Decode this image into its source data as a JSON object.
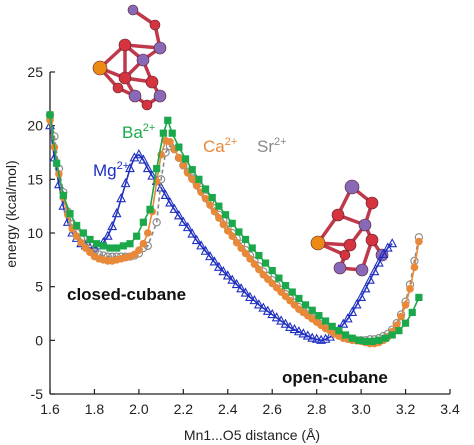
{
  "chart_data": {
    "type": "line",
    "title": "",
    "xlabel": "Mn1...O5 distance (Å)",
    "ylabel": "energy (kcal/mol)",
    "xlim": [
      1.6,
      3.4
    ],
    "ylim": [
      -5,
      25
    ],
    "x_ticks": [
      "1.6",
      "1.8",
      "2.0",
      "2.2",
      "2.4",
      "2.6",
      "2.8",
      "3.0",
      "3.2",
      "3.4"
    ],
    "y_ticks": [
      "-5",
      "0",
      "5",
      "10",
      "15",
      "20",
      "25"
    ],
    "grid": false,
    "legend": [
      {
        "ion": "Ba",
        "charge": "2+",
        "color": "#1aa84a"
      },
      {
        "ion": "Ca",
        "charge": "2+",
        "color": "#e8893a"
      },
      {
        "ion": "Sr",
        "charge": "2+",
        "color": "#888888"
      },
      {
        "ion": "Mg",
        "charge": "2+",
        "color": "#1f2fc0"
      }
    ],
    "annotations": [
      "closed-cubane",
      "open-cubane"
    ],
    "series": [
      {
        "name": "Mg2+",
        "color": "#1f2fc0",
        "marker": "triangle-open",
        "points": [
          [
            1.6,
            20
          ],
          [
            1.62,
            17
          ],
          [
            1.64,
            14.5
          ],
          [
            1.66,
            12.5
          ],
          [
            1.68,
            11
          ],
          [
            1.7,
            10
          ],
          [
            1.72,
            9.5
          ],
          [
            1.74,
            9
          ],
          [
            1.76,
            8.8
          ],
          [
            1.78,
            8.6
          ],
          [
            1.8,
            8.6
          ],
          [
            1.82,
            8.8
          ],
          [
            1.84,
            9.1
          ],
          [
            1.86,
            9.7
          ],
          [
            1.88,
            10.6
          ],
          [
            1.9,
            11.8
          ],
          [
            1.92,
            13.2
          ],
          [
            1.94,
            14.6
          ],
          [
            1.96,
            16
          ],
          [
            1.98,
            17
          ],
          [
            2.0,
            17.3
          ],
          [
            2.02,
            16.8
          ],
          [
            2.04,
            16
          ],
          [
            2.06,
            15.3
          ],
          [
            2.08,
            14.8
          ],
          [
            2.1,
            14.2
          ],
          [
            2.12,
            13.5
          ],
          [
            2.14,
            12.8
          ],
          [
            2.16,
            12.2
          ],
          [
            2.18,
            11.6
          ],
          [
            2.2,
            11
          ],
          [
            2.22,
            10.5
          ],
          [
            2.24,
            9.9
          ],
          [
            2.26,
            9.3
          ],
          [
            2.28,
            8.8
          ],
          [
            2.3,
            8.3
          ],
          [
            2.32,
            7.8
          ],
          [
            2.34,
            7.3
          ],
          [
            2.36,
            6.8
          ],
          [
            2.38,
            6.4
          ],
          [
            2.4,
            6
          ],
          [
            2.42,
            5.6
          ],
          [
            2.44,
            5.2
          ],
          [
            2.46,
            4.8
          ],
          [
            2.48,
            4.4
          ],
          [
            2.5,
            4
          ],
          [
            2.52,
            3.7
          ],
          [
            2.54,
            3.3
          ],
          [
            2.56,
            3
          ],
          [
            2.58,
            2.7
          ],
          [
            2.6,
            2.4
          ],
          [
            2.62,
            2.1
          ],
          [
            2.64,
            1.8
          ],
          [
            2.66,
            1.5
          ],
          [
            2.68,
            1.2
          ],
          [
            2.7,
            1
          ],
          [
            2.72,
            0.8
          ],
          [
            2.74,
            0.6
          ],
          [
            2.76,
            0.4
          ],
          [
            2.78,
            0.2
          ],
          [
            2.8,
            0.1
          ],
          [
            2.82,
            0
          ],
          [
            2.84,
            0.1
          ],
          [
            2.86,
            0.3
          ],
          [
            2.88,
            0.6
          ],
          [
            2.9,
            1
          ],
          [
            2.92,
            1.5
          ],
          [
            2.94,
            2
          ],
          [
            2.96,
            2.6
          ],
          [
            2.98,
            3.3
          ],
          [
            3.0,
            4
          ],
          [
            3.02,
            4.8
          ],
          [
            3.04,
            5.6
          ],
          [
            3.06,
            6.4
          ],
          [
            3.08,
            7.2
          ],
          [
            3.1,
            8
          ],
          [
            3.12,
            8.6
          ],
          [
            3.14,
            9
          ]
        ]
      },
      {
        "name": "Sr2+",
        "color": "#888888",
        "marker": "circle-open",
        "points": [
          [
            1.6,
            21
          ],
          [
            1.62,
            19
          ],
          [
            1.64,
            16
          ],
          [
            1.66,
            13.8
          ],
          [
            1.68,
            12
          ],
          [
            1.7,
            10.8
          ],
          [
            1.72,
            10
          ],
          [
            1.74,
            9.4
          ],
          [
            1.76,
            9
          ],
          [
            1.78,
            8.5
          ],
          [
            1.8,
            8.2
          ],
          [
            1.82,
            8
          ],
          [
            1.84,
            7.9
          ],
          [
            1.86,
            7.8
          ],
          [
            1.88,
            7.8
          ],
          [
            1.9,
            7.8
          ],
          [
            1.92,
            7.8
          ],
          [
            1.94,
            7.8
          ],
          [
            1.96,
            7.8
          ],
          [
            1.98,
            7.9
          ],
          [
            2.0,
            8.1
          ],
          [
            2.02,
            8.6
          ],
          [
            2.04,
            8.8
          ],
          [
            2.08,
            11
          ],
          [
            2.1,
            15
          ],
          [
            2.12,
            17.5
          ],
          [
            2.14,
            18.1
          ],
          [
            2.16,
            17.8
          ],
          [
            2.18,
            17
          ],
          [
            2.2,
            16.3
          ],
          [
            2.22,
            15.7
          ],
          [
            2.24,
            15.1
          ],
          [
            2.26,
            14.6
          ],
          [
            2.28,
            14
          ],
          [
            2.3,
            13.4
          ],
          [
            2.32,
            12.9
          ],
          [
            2.34,
            12.3
          ],
          [
            2.36,
            11.7
          ],
          [
            2.38,
            11.2
          ],
          [
            2.4,
            10.6
          ],
          [
            2.42,
            10
          ],
          [
            2.44,
            9.5
          ],
          [
            2.46,
            9
          ],
          [
            2.48,
            8.4
          ],
          [
            2.5,
            7.9
          ],
          [
            2.52,
            7.4
          ],
          [
            2.54,
            6.9
          ],
          [
            2.56,
            6.4
          ],
          [
            2.58,
            6
          ],
          [
            2.6,
            5.6
          ],
          [
            2.62,
            5.1
          ],
          [
            2.64,
            4.7
          ],
          [
            2.66,
            4.3
          ],
          [
            2.68,
            3.9
          ],
          [
            2.7,
            3.5
          ],
          [
            2.72,
            3.1
          ],
          [
            2.74,
            2.7
          ],
          [
            2.76,
            2.4
          ],
          [
            2.78,
            2.1
          ],
          [
            2.8,
            1.8
          ],
          [
            2.82,
            1.5
          ],
          [
            2.84,
            1.2
          ],
          [
            2.86,
            1
          ],
          [
            2.88,
            0.7
          ],
          [
            2.9,
            0.5
          ],
          [
            2.92,
            0.3
          ],
          [
            2.94,
            0.2
          ],
          [
            2.96,
            0.1
          ],
          [
            2.98,
            0
          ],
          [
            3.0,
            0
          ],
          [
            3.02,
            0
          ],
          [
            3.04,
            0.1
          ],
          [
            3.06,
            0.1
          ],
          [
            3.08,
            0.2
          ],
          [
            3.1,
            0.4
          ],
          [
            3.12,
            0.6
          ],
          [
            3.14,
            1
          ],
          [
            3.16,
            1.6
          ],
          [
            3.18,
            2.4
          ],
          [
            3.2,
            3.6
          ],
          [
            3.22,
            5.2
          ],
          [
            3.24,
            7.4
          ],
          [
            3.26,
            9.6
          ]
        ]
      },
      {
        "name": "Ca2+",
        "color": "#e8893a",
        "marker": "circle-filled",
        "points": [
          [
            1.6,
            20.5
          ],
          [
            1.62,
            18
          ],
          [
            1.64,
            15.5
          ],
          [
            1.66,
            13.3
          ],
          [
            1.68,
            11.7
          ],
          [
            1.7,
            10.4
          ],
          [
            1.72,
            9.7
          ],
          [
            1.74,
            9.1
          ],
          [
            1.76,
            8.6
          ],
          [
            1.78,
            8.2
          ],
          [
            1.8,
            7.8
          ],
          [
            1.82,
            7.6
          ],
          [
            1.84,
            7.5
          ],
          [
            1.86,
            7.4
          ],
          [
            1.88,
            7.4
          ],
          [
            1.9,
            7.5
          ],
          [
            1.92,
            7.6
          ],
          [
            1.94,
            7.7
          ],
          [
            1.96,
            7.8
          ],
          [
            1.98,
            8
          ],
          [
            2.0,
            8.4
          ],
          [
            2.02,
            9
          ],
          [
            2.04,
            10
          ],
          [
            2.06,
            12
          ],
          [
            2.08,
            14.8
          ],
          [
            2.1,
            17.3
          ],
          [
            2.12,
            18.6
          ],
          [
            2.14,
            18.5
          ],
          [
            2.16,
            17.8
          ],
          [
            2.18,
            17
          ],
          [
            2.2,
            16.3
          ],
          [
            2.22,
            15.6
          ],
          [
            2.24,
            15
          ],
          [
            2.26,
            14.4
          ],
          [
            2.28,
            13.8
          ],
          [
            2.3,
            13.2
          ],
          [
            2.32,
            12.6
          ],
          [
            2.34,
            12
          ],
          [
            2.36,
            11.4
          ],
          [
            2.38,
            10.8
          ],
          [
            2.4,
            10.2
          ],
          [
            2.42,
            9.7
          ],
          [
            2.44,
            9.1
          ],
          [
            2.46,
            8.6
          ],
          [
            2.48,
            8.1
          ],
          [
            2.5,
            7.6
          ],
          [
            2.52,
            7.1
          ],
          [
            2.54,
            6.6
          ],
          [
            2.56,
            6.1
          ],
          [
            2.58,
            5.7
          ],
          [
            2.6,
            5.3
          ],
          [
            2.62,
            4.9
          ],
          [
            2.64,
            4.5
          ],
          [
            2.66,
            4.1
          ],
          [
            2.68,
            3.7
          ],
          [
            2.7,
            3.3
          ],
          [
            2.72,
            2.9
          ],
          [
            2.74,
            2.6
          ],
          [
            2.76,
            2.3
          ],
          [
            2.78,
            2
          ],
          [
            2.8,
            1.7
          ],
          [
            2.82,
            1.4
          ],
          [
            2.84,
            1.1
          ],
          [
            2.86,
            0.9
          ],
          [
            2.88,
            0.6
          ],
          [
            2.9,
            0.4
          ],
          [
            2.92,
            0.2
          ],
          [
            2.94,
            0.1
          ],
          [
            2.96,
            0
          ],
          [
            2.98,
            0
          ],
          [
            3.0,
            -0.1
          ],
          [
            3.02,
            -0.2
          ],
          [
            3.04,
            -0.3
          ],
          [
            3.06,
            -0.3
          ],
          [
            3.08,
            -0.2
          ],
          [
            3.1,
            0
          ],
          [
            3.12,
            0.3
          ],
          [
            3.14,
            0.8
          ],
          [
            3.16,
            1.4
          ],
          [
            3.18,
            2.2
          ],
          [
            3.2,
            3.3
          ],
          [
            3.22,
            4.8
          ],
          [
            3.24,
            6.8
          ],
          [
            3.26,
            9.2
          ]
        ]
      },
      {
        "name": "Ba2+",
        "color": "#1aa84a",
        "marker": "square-filled",
        "points": [
          [
            1.6,
            21
          ],
          [
            1.63,
            16.5
          ],
          [
            1.66,
            13.5
          ],
          [
            1.69,
            11.8
          ],
          [
            1.72,
            10.7
          ],
          [
            1.75,
            10
          ],
          [
            1.78,
            9.4
          ],
          [
            1.81,
            9
          ],
          [
            1.84,
            8.8
          ],
          [
            1.87,
            8.6
          ],
          [
            1.9,
            8.6
          ],
          [
            1.93,
            8.8
          ],
          [
            1.96,
            9
          ],
          [
            1.99,
            9.7
          ],
          [
            2.02,
            11
          ],
          [
            2.05,
            12.2
          ],
          [
            2.08,
            16
          ],
          [
            2.11,
            19.3
          ],
          [
            2.13,
            20.5
          ],
          [
            2.15,
            19.3
          ],
          [
            2.18,
            18
          ],
          [
            2.21,
            16.9
          ],
          [
            2.24,
            15.9
          ],
          [
            2.27,
            15
          ],
          [
            2.3,
            14.1
          ],
          [
            2.33,
            13.3
          ],
          [
            2.36,
            12.5
          ],
          [
            2.39,
            11.7
          ],
          [
            2.42,
            10.9
          ],
          [
            2.45,
            10.1
          ],
          [
            2.48,
            9.4
          ],
          [
            2.51,
            8.6
          ],
          [
            2.54,
            7.9
          ],
          [
            2.57,
            7.2
          ],
          [
            2.6,
            6.5
          ],
          [
            2.63,
            5.8
          ],
          [
            2.66,
            5.1
          ],
          [
            2.69,
            4.5
          ],
          [
            2.72,
            3.9
          ],
          [
            2.75,
            3.3
          ],
          [
            2.78,
            2.8
          ],
          [
            2.81,
            2.3
          ],
          [
            2.84,
            1.8
          ],
          [
            2.87,
            1.3
          ],
          [
            2.9,
            0.9
          ],
          [
            2.93,
            0.5
          ],
          [
            2.96,
            0.2
          ],
          [
            2.99,
            0
          ],
          [
            3.02,
            -0.1
          ],
          [
            3.05,
            -0.1
          ],
          [
            3.08,
            0
          ],
          [
            3.11,
            0.2
          ],
          [
            3.14,
            0.5
          ],
          [
            3.17,
            0.9
          ],
          [
            3.2,
            1.6
          ],
          [
            3.23,
            2.6
          ],
          [
            3.26,
            4
          ]
        ]
      }
    ]
  }
}
